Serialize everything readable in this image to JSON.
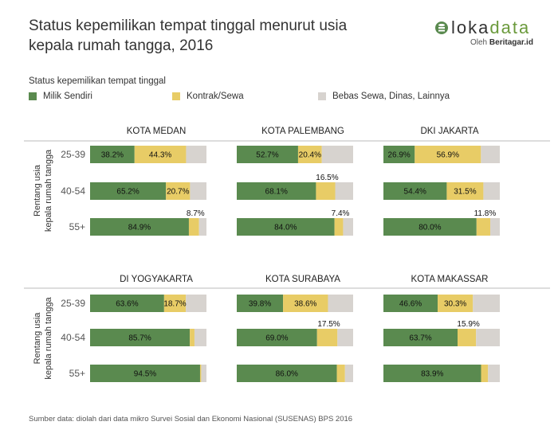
{
  "title": "Status kepemilikan tempat tinggal menurut usia kepala rumah tangga, 2016",
  "logo": {
    "word_a": "loka",
    "word_b": "data",
    "byline": "Oleh",
    "brand": "Beritagar.id"
  },
  "legend": {
    "title": "Status kepemilikan tempat tinggal",
    "items": [
      {
        "label": "Milik Sendiri",
        "color": "#5a8a4f"
      },
      {
        "label": "Kontrak/Sewa",
        "color": "#e8cc66"
      },
      {
        "label": "Bebas Sewa, Dinas, Lainnya",
        "color": "#d7d3cf"
      }
    ]
  },
  "source": "Sumber data: diolah dari data mikro Survei Sosial dan Ekonomi Nasional (SUSENAS) BPS 2016",
  "chart_data": {
    "type": "bar",
    "stacked": true,
    "orientation": "horizontal",
    "y_axis_title": "Rentang usia kepala rumah tangga",
    "categories": [
      "25-39",
      "40-54",
      "55+"
    ],
    "series_names": [
      "Milik Sendiri",
      "Kontrak/Sewa",
      "Bebas Sewa, Dinas, Lainnya"
    ],
    "xlim": [
      0,
      100
    ],
    "panels": [
      {
        "name": "KOTA MEDAN",
        "rows": [
          {
            "age": "25-39",
            "milik": 38.2,
            "kontrak": 44.3,
            "milik_label": "38.2%",
            "kontrak_label": "44.3%"
          },
          {
            "age": "40-54",
            "milik": 65.2,
            "kontrak": 20.7,
            "milik_label": "65.2%",
            "kontrak_label": "20.7%"
          },
          {
            "age": "55+",
            "milik": 84.9,
            "kontrak": 8.7,
            "milik_label": "84.9%",
            "kontrak_label": "8.7%"
          }
        ]
      },
      {
        "name": "KOTA PALEMBANG",
        "rows": [
          {
            "age": "25-39",
            "milik": 52.7,
            "kontrak": 20.4,
            "milik_label": "52.7%",
            "kontrak_label": "20.4%"
          },
          {
            "age": "40-54",
            "milik": 68.1,
            "kontrak": 16.5,
            "milik_label": "68.1%",
            "kontrak_label": "16.5%"
          },
          {
            "age": "55+",
            "milik": 84.0,
            "kontrak": 7.4,
            "milik_label": "84.0%",
            "kontrak_label": "7.4%"
          }
        ]
      },
      {
        "name": "DKI JAKARTA",
        "rows": [
          {
            "age": "25-39",
            "milik": 26.9,
            "kontrak": 56.9,
            "milik_label": "26.9%",
            "kontrak_label": "56.9%"
          },
          {
            "age": "40-54",
            "milik": 54.4,
            "kontrak": 31.5,
            "milik_label": "54.4%",
            "kontrak_label": "31.5%"
          },
          {
            "age": "55+",
            "milik": 80.0,
            "kontrak": 11.8,
            "milik_label": "80.0%",
            "kontrak_label": "11.8%"
          }
        ]
      },
      {
        "name": "DI YOGYAKARTA",
        "rows": [
          {
            "age": "25-39",
            "milik": 63.6,
            "kontrak": 18.7,
            "milik_label": "63.6%",
            "kontrak_label": "18.7%"
          },
          {
            "age": "40-54",
            "milik": 85.7,
            "kontrak": 4.0,
            "milik_label": "85.7%",
            "kontrak_label": null
          },
          {
            "age": "55+",
            "milik": 94.5,
            "kontrak": 1.0,
            "milik_label": "94.5%",
            "kontrak_label": null
          }
        ]
      },
      {
        "name": "KOTA SURABAYA",
        "rows": [
          {
            "age": "25-39",
            "milik": 39.8,
            "kontrak": 38.6,
            "milik_label": "39.8%",
            "kontrak_label": "38.6%"
          },
          {
            "age": "40-54",
            "milik": 69.0,
            "kontrak": 17.5,
            "milik_label": "69.0%",
            "kontrak_label": "17.5%"
          },
          {
            "age": "55+",
            "milik": 86.0,
            "kontrak": 7.0,
            "milik_label": "86.0%",
            "kontrak_label": null
          }
        ]
      },
      {
        "name": "KOTA MAKASSAR",
        "rows": [
          {
            "age": "25-39",
            "milik": 46.6,
            "kontrak": 30.3,
            "milik_label": "46.6%",
            "kontrak_label": "30.3%"
          },
          {
            "age": "40-54",
            "milik": 63.7,
            "kontrak": 15.9,
            "milik_label": "63.7%",
            "kontrak_label": "15.9%"
          },
          {
            "age": "55+",
            "milik": 83.9,
            "kontrak": 6.0,
            "milik_label": "83.9%",
            "kontrak_label": null
          }
        ]
      }
    ]
  }
}
